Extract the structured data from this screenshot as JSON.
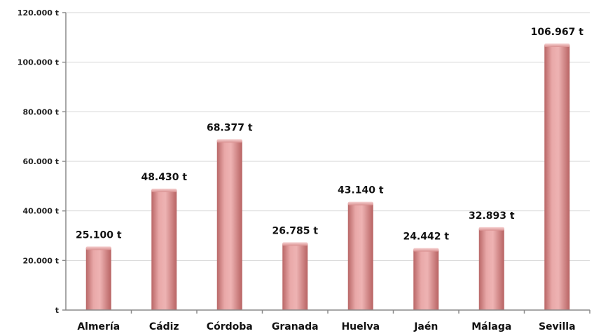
{
  "chart_data": {
    "type": "bar",
    "title": "",
    "xlabel": "",
    "ylabel": "",
    "categories": [
      "Almería",
      "Cádiz",
      "Córdoba",
      "Granada",
      "Huelva",
      "Jaén",
      "Málaga",
      "Sevilla"
    ],
    "values": [
      25100,
      48430,
      68377,
      26785,
      43140,
      24442,
      32893,
      106967
    ],
    "data_labels": [
      "25.100 t",
      "48.430 t",
      "68.377 t",
      "26.785 t",
      "43.140 t",
      "24.442 t",
      "32.893 t",
      "106.967 t"
    ],
    "ylim": [
      0,
      120000
    ],
    "yticks": [
      0,
      20000,
      40000,
      60000,
      80000,
      100000,
      120000
    ],
    "ytick_labels": [
      "t",
      "20.000 t",
      "40.000 t",
      "60.000 t",
      "80.000 t",
      "100.000 t",
      "120.000 t"
    ],
    "grid": true,
    "legend": "none",
    "bar_color": "#d98c8c"
  }
}
